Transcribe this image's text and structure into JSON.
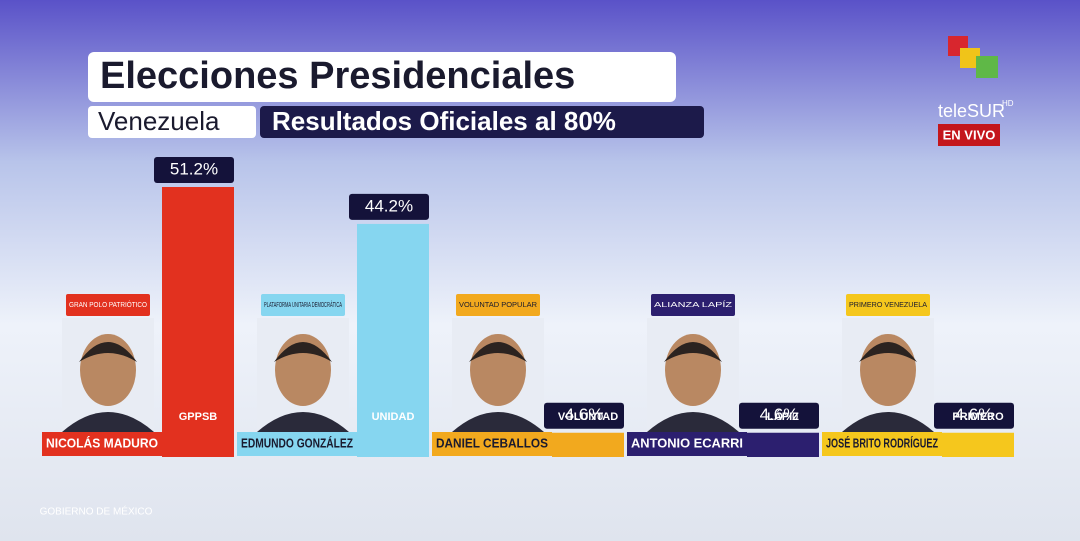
{
  "chart_data": {
    "type": "bar",
    "title": "Elecciones Presidenciales",
    "region": "Venezuela",
    "subtitle": "Resultados Oficiales al 80%",
    "categories": [
      "NICOLÁS MADURO",
      "EDMUNDO GONZÁLEZ",
      "DANIEL CEBALLOS",
      "ANTONIO ECARRI",
      "JOSÉ BRITO RODRÍGUEZ"
    ],
    "parties": [
      "GRAN POLO PATRIÓTICO",
      "PLATAFORMA UNITARIA DEMOCRÁTICA",
      "VOLUNTAD POPULAR",
      "ALIANZA LAPÍZ",
      "PRIMERO VENEZUELA"
    ],
    "bar_logos": [
      "GPPSB",
      "UNIDAD",
      "VOLUNTAD",
      "LÁPIZ",
      "PRIMERO"
    ],
    "values": [
      51.2,
      44.2,
      4.6,
      4.6,
      4.6
    ],
    "value_labels": [
      "51.2%",
      "44.2%",
      "4.6%",
      "4.6%",
      "4.6%"
    ],
    "colors": [
      "#e2311f",
      "#86d6f0",
      "#f2a91e",
      "#2c1f6f",
      "#f5c71d"
    ]
  },
  "channel": {
    "name": "teleSUR",
    "hd": "HD",
    "live": "EN VIVO"
  },
  "watermark": "GOBIERNO DE MÉXICO"
}
